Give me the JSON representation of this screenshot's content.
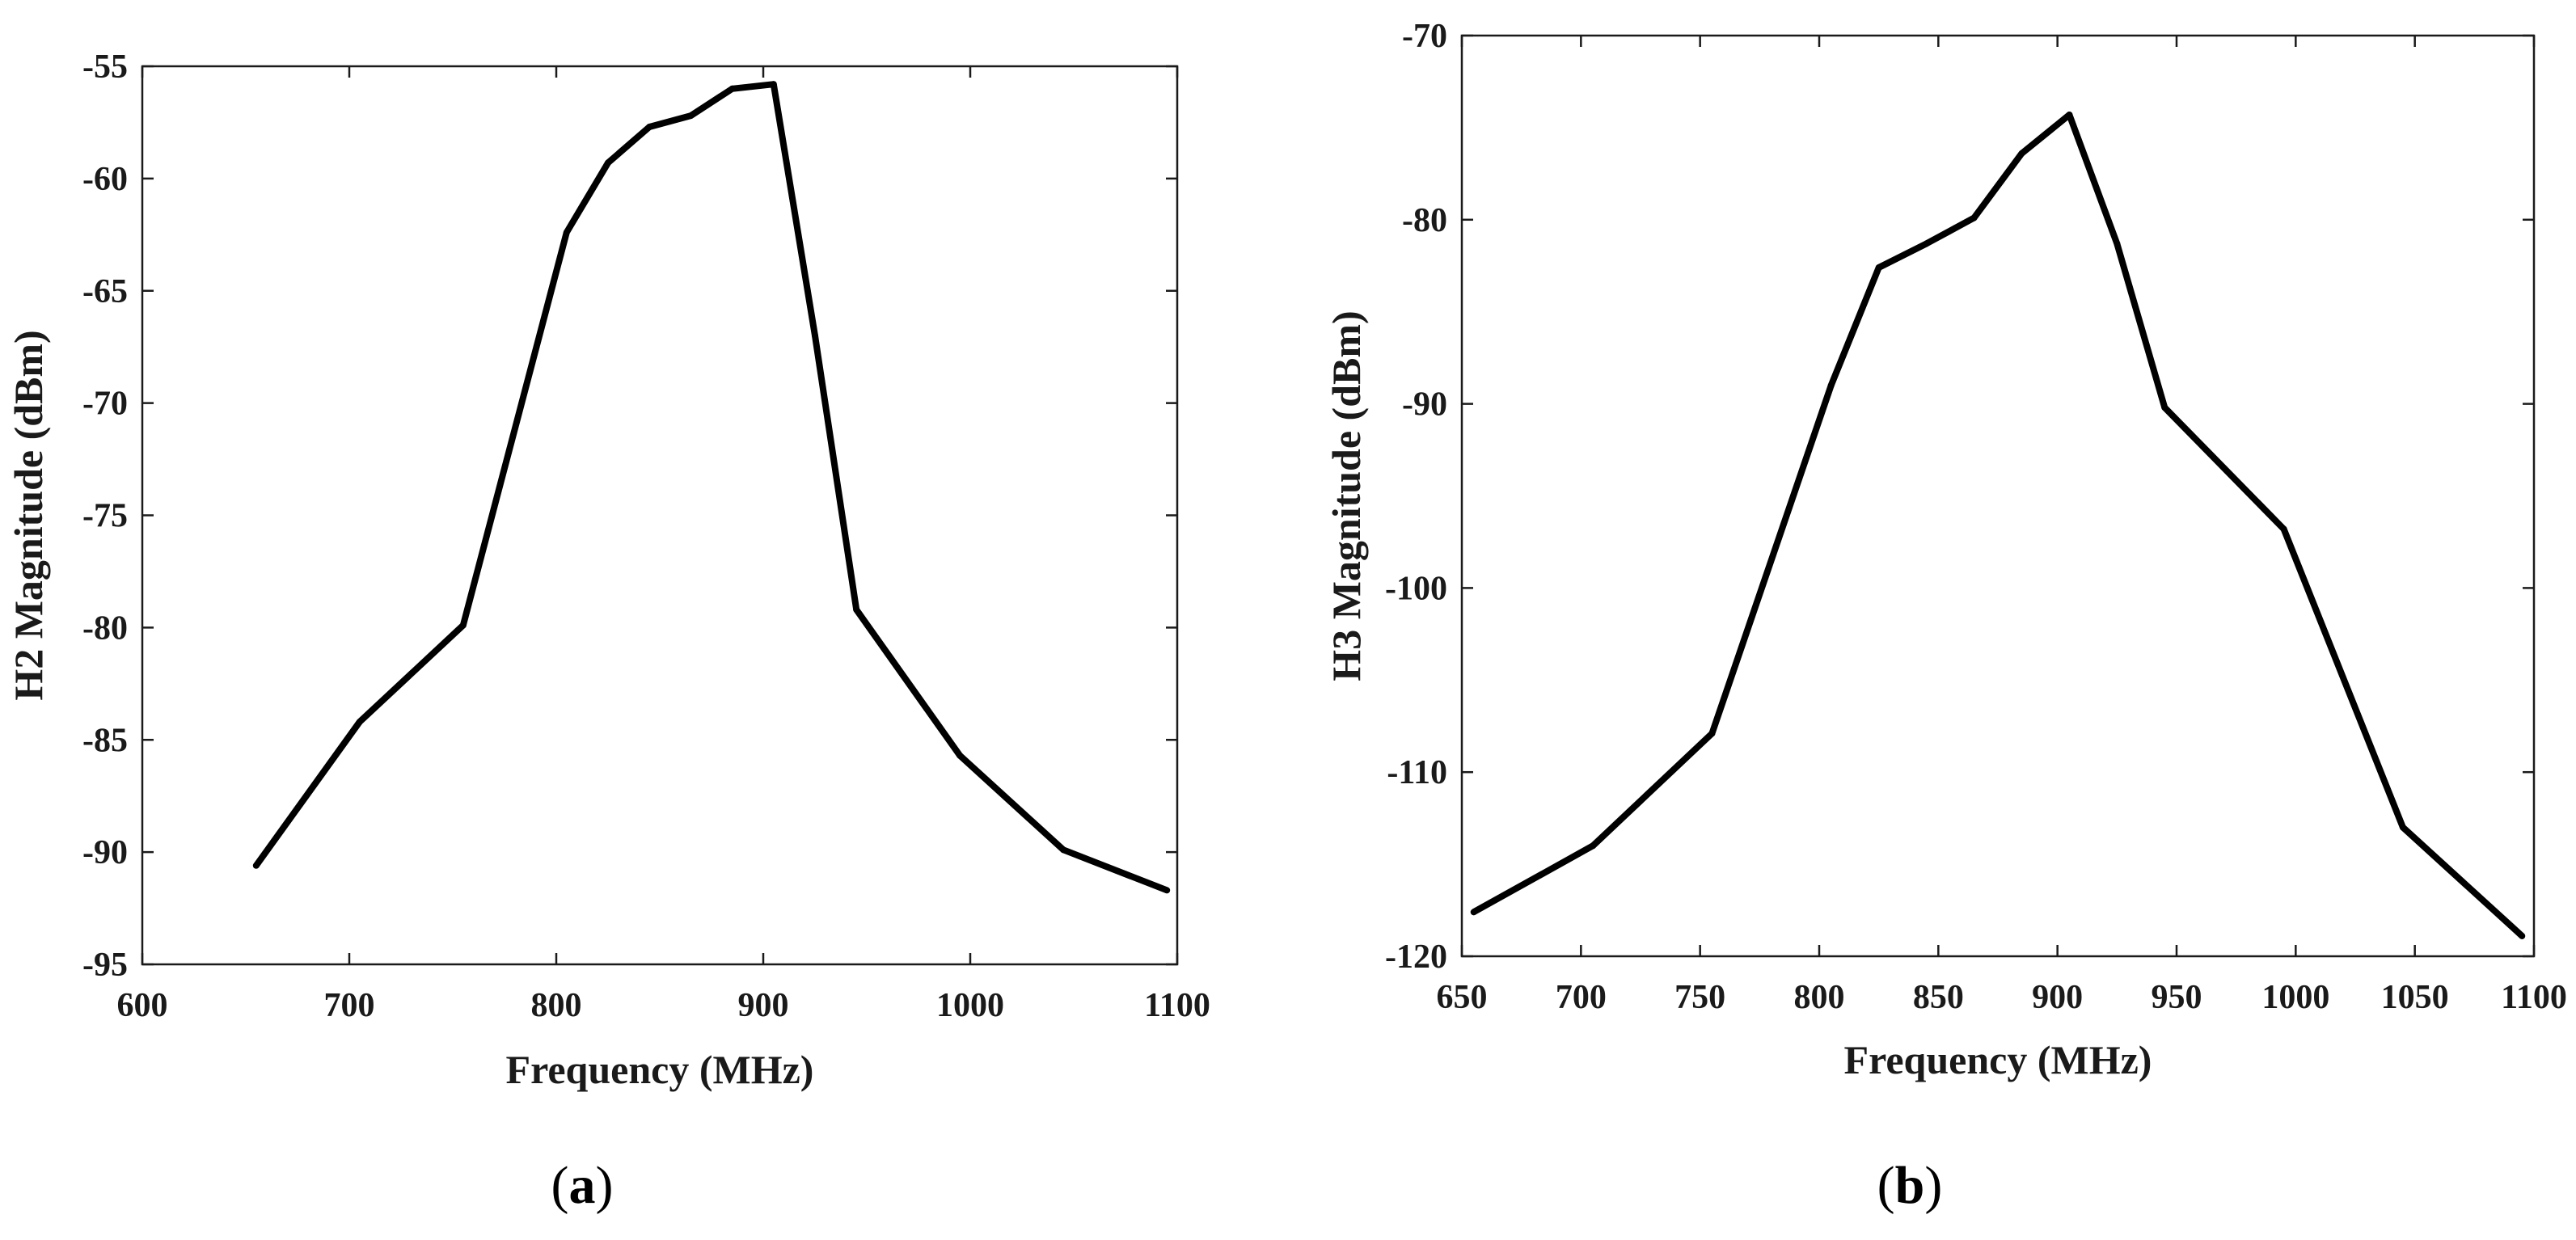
{
  "colors": {
    "line": "#000000",
    "axis": "#1a1a1a",
    "background": "#ffffff"
  },
  "panels": [
    {
      "letter": "a",
      "open": "(",
      "close": ")"
    },
    {
      "letter": "b",
      "open": "(",
      "close": ")"
    }
  ],
  "chart_data": [
    {
      "type": "line",
      "title": "",
      "xlabel": "Frequency (MHz)",
      "ylabel": "H2 Magnitude (dBm)",
      "xlim": [
        600,
        1100
      ],
      "ylim": [
        -95,
        -55
      ],
      "xticks": [
        600,
        700,
        800,
        900,
        1000,
        1100
      ],
      "yticks": [
        -95,
        -90,
        -85,
        -80,
        -75,
        -70,
        -65,
        -60,
        -55
      ],
      "grid": false,
      "series": [
        {
          "name": "H2",
          "x": [
            655,
            705,
            755,
            805,
            825,
            845,
            865,
            885,
            905,
            925,
            945,
            995,
            1045,
            1095
          ],
          "y": [
            -90.6,
            -84.2,
            -79.9,
            -62.4,
            -59.3,
            -57.7,
            -57.2,
            -56.0,
            -55.8,
            -67.0,
            -79.2,
            -85.7,
            -89.9,
            -91.7
          ]
        }
      ]
    },
    {
      "type": "line",
      "title": "",
      "xlabel": "Frequency (MHz)",
      "ylabel": "H3 Magnitude (dBm)",
      "xlim": [
        650,
        1100
      ],
      "ylim": [
        -120,
        -70
      ],
      "xticks": [
        650,
        700,
        750,
        800,
        850,
        900,
        950,
        1000,
        1050,
        1100
      ],
      "yticks": [
        -120,
        -110,
        -100,
        -90,
        -80,
        -70
      ],
      "grid": false,
      "series": [
        {
          "name": "H3",
          "x": [
            655,
            705,
            755,
            805,
            825,
            845,
            865,
            885,
            905,
            925,
            945,
            995,
            1045,
            1095
          ],
          "y": [
            -117.6,
            -114.0,
            -107.9,
            -89.0,
            -82.6,
            -81.3,
            -79.9,
            -76.4,
            -74.3,
            -81.3,
            -90.2,
            -96.8,
            -113.0,
            -118.9
          ]
        }
      ]
    }
  ]
}
